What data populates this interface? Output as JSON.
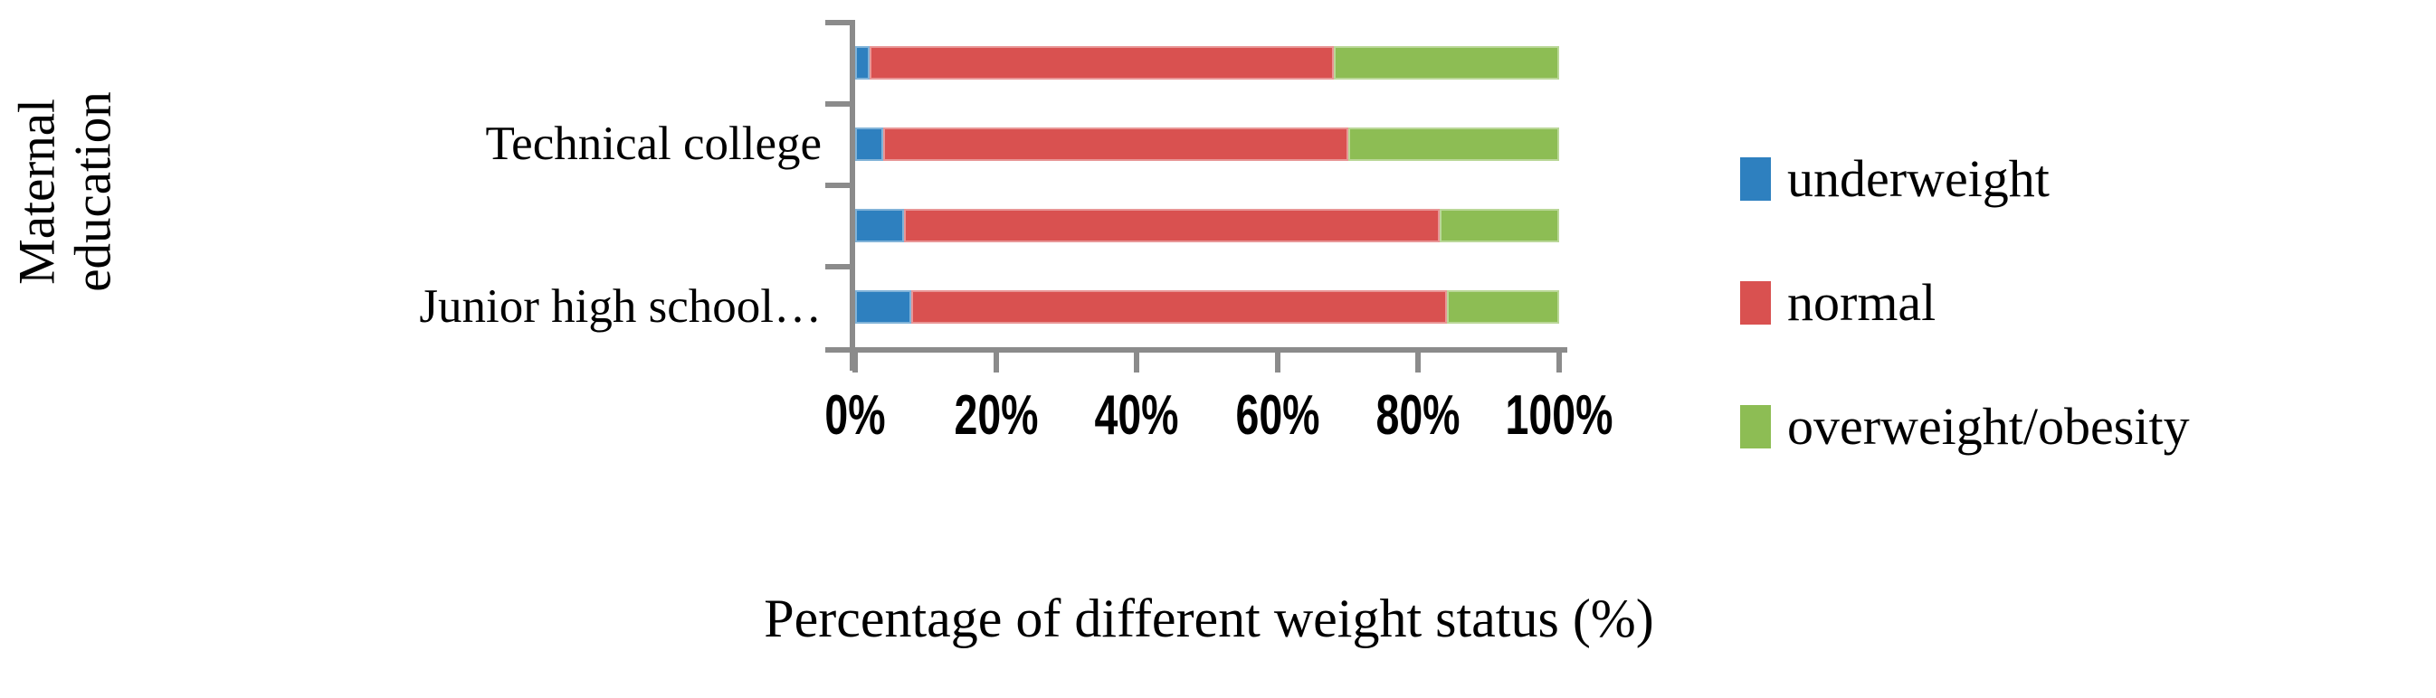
{
  "chart_data": {
    "type": "bar",
    "orientation": "horizontal",
    "stacked": true,
    "title": "",
    "xlabel": "Percentage of different weight status (%)",
    "ylabel": "Maternal education",
    "categories": [
      "",
      "Technical college",
      "",
      "Junior high school…"
    ],
    "series": [
      {
        "name": "underweight",
        "color": "#2E80BF",
        "values": [
          2,
          4,
          7,
          8
        ]
      },
      {
        "name": "normal",
        "color": "#D95150",
        "values": [
          66,
          66,
          76,
          76
        ]
      },
      {
        "name": "overweight/obesity",
        "color": "#8DBD54",
        "values": [
          32,
          30,
          17,
          16
        ]
      }
    ],
    "x_ticks": [
      "0%",
      "20%",
      "40%",
      "60%",
      "80%",
      "100%"
    ],
    "xlim": [
      0,
      100
    ],
    "legend_position": "right",
    "grid": false,
    "axis_color": "#8B8B8B"
  }
}
